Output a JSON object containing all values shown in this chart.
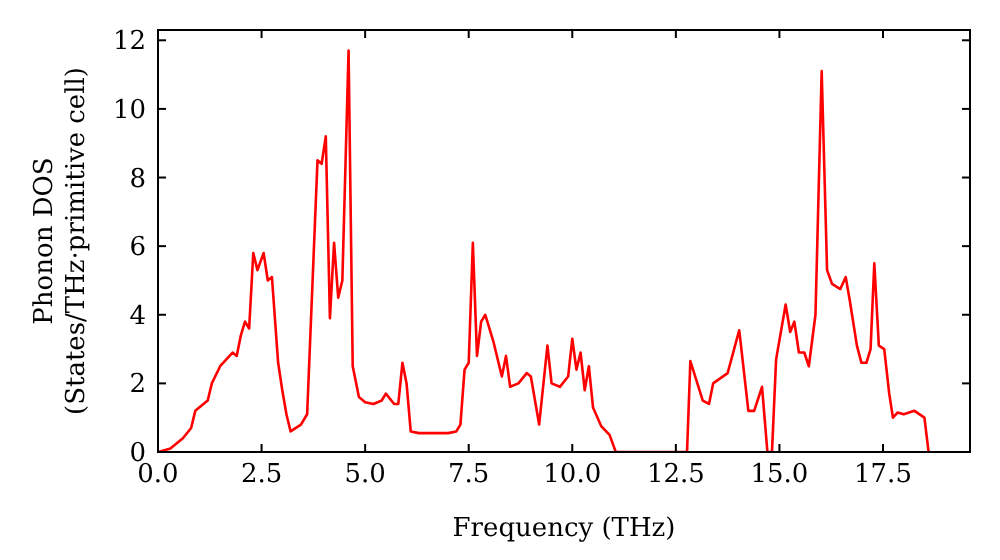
{
  "chart_data": {
    "type": "line",
    "xlabel": "Frequency (THz)",
    "ylabel": "Phonon DOS\n(States/THz·primitive cell)",
    "xlim": [
      0,
      19.6
    ],
    "ylim": [
      0,
      12.3
    ],
    "xticks": [
      {
        "value": 0,
        "label": "0.0"
      },
      {
        "value": 2.5,
        "label": "2.5"
      },
      {
        "value": 5,
        "label": "5.0"
      },
      {
        "value": 7.5,
        "label": "7.5"
      },
      {
        "value": 10,
        "label": "10.0"
      },
      {
        "value": 12.5,
        "label": "12.5"
      },
      {
        "value": 15,
        "label": "15.0"
      },
      {
        "value": 17.5,
        "label": "17.5"
      }
    ],
    "yticks": [
      0,
      2,
      4,
      6,
      8,
      10,
      12
    ],
    "grid": false,
    "marker": "none",
    "line_style": "solid",
    "series": [
      {
        "color": "#ff0000",
        "x": [
          0,
          0.3,
          0.6,
          0.8,
          0.9,
          1.2,
          1.3,
          1.5,
          1.8,
          1.9,
          2.0,
          2.1,
          2.2,
          2.3,
          2.4,
          2.55,
          2.65,
          2.75,
          2.9,
          3.0,
          3.1,
          3.2,
          3.45,
          3.6,
          3.85,
          3.95,
          4.05,
          4.15,
          4.25,
          4.35,
          4.45,
          4.6,
          4.7,
          4.85,
          5.0,
          5.2,
          5.4,
          5.5,
          5.7,
          5.8,
          5.9,
          6.0,
          6.1,
          6.3,
          7.0,
          7.2,
          7.3,
          7.4,
          7.5,
          7.6,
          7.7,
          7.8,
          7.9,
          8.1,
          8.3,
          8.4,
          8.5,
          8.7,
          8.9,
          9.0,
          9.2,
          9.4,
          9.5,
          9.7,
          9.9,
          10.0,
          10.1,
          10.2,
          10.3,
          10.4,
          10.5,
          10.7,
          10.9,
          11.05,
          12.77,
          12.85,
          13.15,
          13.3,
          13.4,
          13.75,
          14.03,
          14.25,
          14.39,
          14.58,
          14.71,
          14.82,
          14.92,
          15.15,
          15.26,
          15.36,
          15.47,
          15.6,
          15.71,
          15.87,
          16.02,
          16.15,
          16.27,
          16.47,
          16.6,
          16.7,
          16.87,
          16.98,
          17.1,
          17.2,
          17.29,
          17.4,
          17.53,
          17.65,
          17.74,
          17.85,
          18.0,
          18.26,
          18.5,
          18.6
        ],
        "values": [
          0,
          0.1,
          0.4,
          0.7,
          1.2,
          1.5,
          2.0,
          2.5,
          2.9,
          2.8,
          3.4,
          3.8,
          3.6,
          5.8,
          5.3,
          5.8,
          5.0,
          5.1,
          2.6,
          1.8,
          1.1,
          0.6,
          0.8,
          1.1,
          8.5,
          8.4,
          9.2,
          3.9,
          6.1,
          4.5,
          5.0,
          11.7,
          2.5,
          1.6,
          1.45,
          1.4,
          1.5,
          1.7,
          1.4,
          1.4,
          2.6,
          2.0,
          0.6,
          0.55,
          0.55,
          0.6,
          0.8,
          2.4,
          2.6,
          6.1,
          2.8,
          3.8,
          4.0,
          3.2,
          2.2,
          2.8,
          1.9,
          2.0,
          2.3,
          2.2,
          0.8,
          3.1,
          2.0,
          1.9,
          2.2,
          3.3,
          2.4,
          2.9,
          1.8,
          2.5,
          1.3,
          0.75,
          0.5,
          0,
          0,
          2.65,
          1.5,
          1.4,
          2.0,
          2.3,
          3.55,
          1.2,
          1.2,
          1.9,
          0,
          0,
          2.7,
          4.3,
          3.5,
          3.8,
          2.9,
          2.9,
          2.5,
          4.0,
          11.1,
          5.3,
          4.9,
          4.75,
          5.1,
          4.4,
          3.1,
          2.6,
          2.6,
          3.0,
          5.5,
          3.1,
          3.0,
          1.7,
          1.0,
          1.15,
          1.1,
          1.2,
          1.0,
          0
        ]
      }
    ]
  }
}
